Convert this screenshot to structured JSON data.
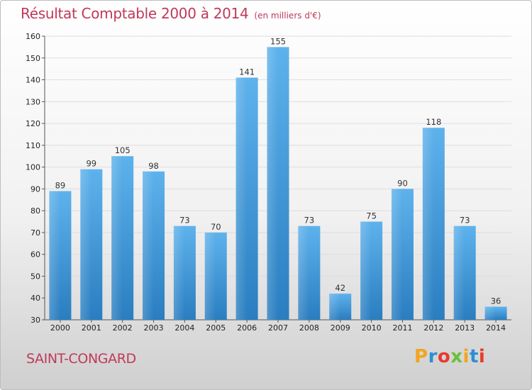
{
  "title": "Résultat Comptable 2000 à 2014",
  "unit_label": "(en milliers d'€)",
  "commune": "SAINT-CONGARD",
  "brand": "Proxiti",
  "brand_colors": [
    "#f2a51f",
    "#2b8fd6",
    "#e83b2f",
    "#6bbf3a",
    "#f2a51f",
    "#2b8fd6",
    "#e83b2f"
  ],
  "colors": {
    "title": "#c0395a",
    "bar_light": "#5aaeea",
    "bar_dark": "#2a7ec0",
    "grid": "#dddddd"
  },
  "chart_data": {
    "type": "bar",
    "categories": [
      "2000",
      "2001",
      "2002",
      "2003",
      "2004",
      "2005",
      "2006",
      "2007",
      "2008",
      "2009",
      "2010",
      "2011",
      "2012",
      "2013",
      "2014"
    ],
    "values": [
      89,
      99,
      105,
      98,
      73,
      70,
      141,
      155,
      73,
      42,
      75,
      90,
      118,
      73,
      36
    ],
    "ylim": [
      30,
      160
    ],
    "yticks": [
      30,
      40,
      50,
      60,
      70,
      80,
      90,
      100,
      110,
      120,
      130,
      140,
      150,
      160
    ],
    "grid": true
  }
}
